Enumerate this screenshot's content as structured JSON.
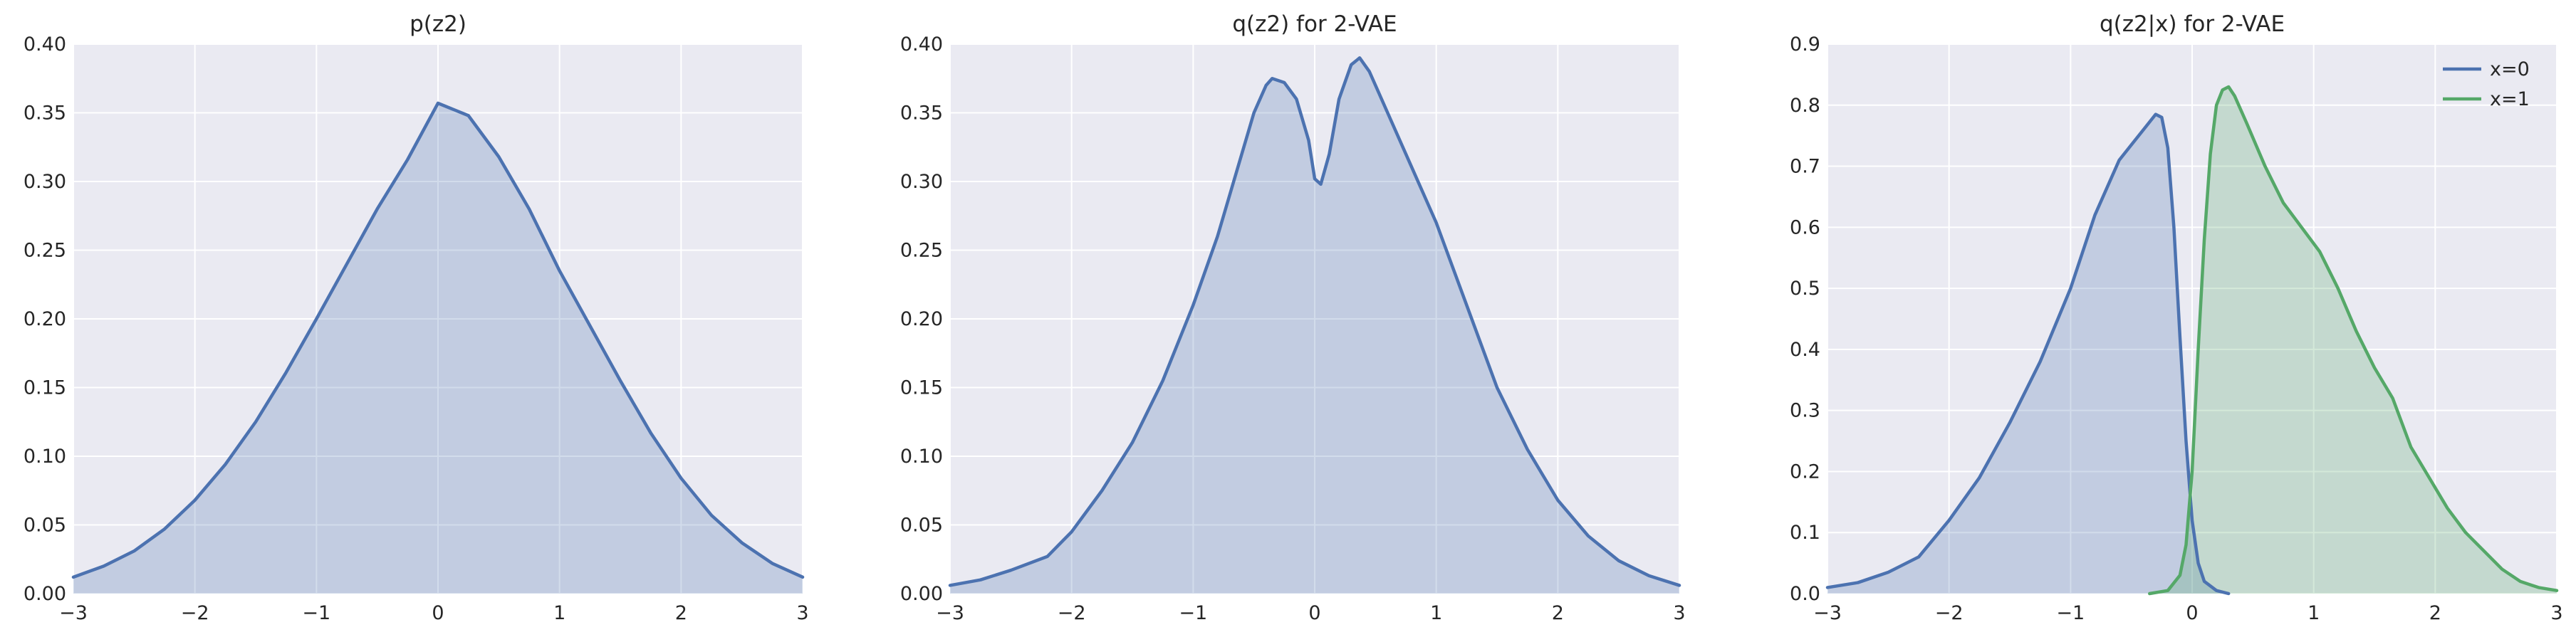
{
  "colors": {
    "axes_background": "#EAEAF2",
    "grid": "#FFFFFF",
    "blue": "#4C72B0",
    "green": "#55A868",
    "text": "#262626"
  },
  "chart_data": [
    {
      "type": "area",
      "title": "p(z2)",
      "xlim": [
        -3,
        3
      ],
      "ylim": [
        0,
        0.4
      ],
      "xticks": [
        -3,
        -2,
        -1,
        0,
        1,
        2,
        3
      ],
      "xtick_labels": [
        "−3",
        "−2",
        "−1",
        "0",
        "1",
        "2",
        "3"
      ],
      "yticks": [
        0,
        0.05,
        0.1,
        0.15,
        0.2,
        0.25,
        0.3,
        0.35,
        0.4
      ],
      "ytick_labels": [
        "0.00",
        "0.05",
        "0.10",
        "0.15",
        "0.20",
        "0.25",
        "0.30",
        "0.35",
        "0.40"
      ],
      "legend": null,
      "series": [
        {
          "name": "p(z2)",
          "color": "#4C72B0",
          "points": [
            [
              -3,
              0.012
            ],
            [
              -2.75,
              0.02
            ],
            [
              -2.5,
              0.031
            ],
            [
              -2.25,
              0.047
            ],
            [
              -2,
              0.068
            ],
            [
              -1.75,
              0.094
            ],
            [
              -1.5,
              0.125
            ],
            [
              -1.25,
              0.161
            ],
            [
              -1,
              0.2
            ],
            [
              -0.75,
              0.24
            ],
            [
              -0.5,
              0.28
            ],
            [
              -0.25,
              0.316
            ],
            [
              0,
              0.357
            ],
            [
              0.25,
              0.348
            ],
            [
              0.5,
              0.318
            ],
            [
              0.75,
              0.28
            ],
            [
              1,
              0.235
            ],
            [
              1.25,
              0.195
            ],
            [
              1.5,
              0.155
            ],
            [
              1.75,
              0.117
            ],
            [
              2,
              0.084
            ],
            [
              2.25,
              0.057
            ],
            [
              2.5,
              0.037
            ],
            [
              2.75,
              0.022
            ],
            [
              3,
              0.012
            ]
          ]
        }
      ]
    },
    {
      "type": "area",
      "title": "q(z2) for 2-VAE",
      "xlim": [
        -3,
        3
      ],
      "ylim": [
        0,
        0.4
      ],
      "xticks": [
        -3,
        -2,
        -1,
        0,
        1,
        2,
        3
      ],
      "xtick_labels": [
        "−3",
        "−2",
        "−1",
        "0",
        "1",
        "2",
        "3"
      ],
      "yticks": [
        0,
        0.05,
        0.1,
        0.15,
        0.2,
        0.25,
        0.3,
        0.35,
        0.4
      ],
      "ytick_labels": [
        "0.00",
        "0.05",
        "0.10",
        "0.15",
        "0.20",
        "0.25",
        "0.30",
        "0.35",
        "0.40"
      ],
      "legend": null,
      "series": [
        {
          "name": "q(z2)",
          "color": "#4C72B0",
          "points": [
            [
              -3,
              0.006
            ],
            [
              -2.75,
              0.01
            ],
            [
              -2.5,
              0.017
            ],
            [
              -2.2,
              0.027
            ],
            [
              -2,
              0.045
            ],
            [
              -1.75,
              0.075
            ],
            [
              -1.5,
              0.11
            ],
            [
              -1.25,
              0.155
            ],
            [
              -1,
              0.21
            ],
            [
              -0.8,
              0.26
            ],
            [
              -0.6,
              0.32
            ],
            [
              -0.5,
              0.35
            ],
            [
              -0.4,
              0.37
            ],
            [
              -0.35,
              0.375
            ],
            [
              -0.25,
              0.372
            ],
            [
              -0.15,
              0.36
            ],
            [
              -0.05,
              0.33
            ],
            [
              0,
              0.302
            ],
            [
              0.05,
              0.298
            ],
            [
              0.12,
              0.32
            ],
            [
              0.2,
              0.36
            ],
            [
              0.3,
              0.385
            ],
            [
              0.37,
              0.39
            ],
            [
              0.45,
              0.38
            ],
            [
              0.6,
              0.35
            ],
            [
              0.8,
              0.31
            ],
            [
              1,
              0.27
            ],
            [
              1.25,
              0.21
            ],
            [
              1.5,
              0.15
            ],
            [
              1.75,
              0.105
            ],
            [
              2,
              0.068
            ],
            [
              2.25,
              0.042
            ],
            [
              2.5,
              0.024
            ],
            [
              2.75,
              0.013
            ],
            [
              3,
              0.006
            ]
          ]
        }
      ]
    },
    {
      "type": "area",
      "title": "q(z2|x) for 2-VAE",
      "xlim": [
        -3,
        3
      ],
      "ylim": [
        0,
        0.9
      ],
      "xticks": [
        -3,
        -2,
        -1,
        0,
        1,
        2,
        3
      ],
      "xtick_labels": [
        "−3",
        "−2",
        "−1",
        "0",
        "1",
        "2",
        "3"
      ],
      "yticks": [
        0,
        0.1,
        0.2,
        0.3,
        0.4,
        0.5,
        0.6,
        0.7,
        0.8,
        0.9
      ],
      "ytick_labels": [
        "0.0",
        "0.1",
        "0.2",
        "0.3",
        "0.4",
        "0.5",
        "0.6",
        "0.7",
        "0.8",
        "0.9"
      ],
      "legend": {
        "placement": "top-right",
        "entries": [
          "x=0",
          "x=1"
        ]
      },
      "series": [
        {
          "name": "x=0",
          "color": "#4C72B0",
          "points": [
            [
              -3,
              0.01
            ],
            [
              -2.75,
              0.018
            ],
            [
              -2.5,
              0.035
            ],
            [
              -2.25,
              0.06
            ],
            [
              -2,
              0.12
            ],
            [
              -1.75,
              0.19
            ],
            [
              -1.5,
              0.28
            ],
            [
              -1.25,
              0.38
            ],
            [
              -1,
              0.5
            ],
            [
              -0.8,
              0.62
            ],
            [
              -0.6,
              0.71
            ],
            [
              -0.5,
              0.735
            ],
            [
              -0.4,
              0.76
            ],
            [
              -0.3,
              0.785
            ],
            [
              -0.25,
              0.78
            ],
            [
              -0.2,
              0.73
            ],
            [
              -0.15,
              0.6
            ],
            [
              -0.1,
              0.42
            ],
            [
              -0.05,
              0.25
            ],
            [
              0,
              0.12
            ],
            [
              0.05,
              0.05
            ],
            [
              0.1,
              0.02
            ],
            [
              0.2,
              0.005
            ],
            [
              0.3,
              0.0
            ]
          ]
        },
        {
          "name": "x=1",
          "color": "#55A868",
          "points": [
            [
              -0.35,
              0.0
            ],
            [
              -0.2,
              0.005
            ],
            [
              -0.1,
              0.03
            ],
            [
              -0.05,
              0.08
            ],
            [
              0,
              0.2
            ],
            [
              0.05,
              0.4
            ],
            [
              0.1,
              0.58
            ],
            [
              0.15,
              0.72
            ],
            [
              0.2,
              0.8
            ],
            [
              0.25,
              0.825
            ],
            [
              0.3,
              0.83
            ],
            [
              0.35,
              0.815
            ],
            [
              0.45,
              0.77
            ],
            [
              0.6,
              0.7
            ],
            [
              0.75,
              0.64
            ],
            [
              0.9,
              0.6
            ],
            [
              1.05,
              0.56
            ],
            [
              1.2,
              0.5
            ],
            [
              1.35,
              0.43
            ],
            [
              1.5,
              0.37
            ],
            [
              1.65,
              0.32
            ],
            [
              1.8,
              0.24
            ],
            [
              1.95,
              0.19
            ],
            [
              2.1,
              0.14
            ],
            [
              2.25,
              0.1
            ],
            [
              2.4,
              0.07
            ],
            [
              2.55,
              0.04
            ],
            [
              2.7,
              0.02
            ],
            [
              2.85,
              0.01
            ],
            [
              3,
              0.005
            ]
          ]
        }
      ]
    }
  ]
}
